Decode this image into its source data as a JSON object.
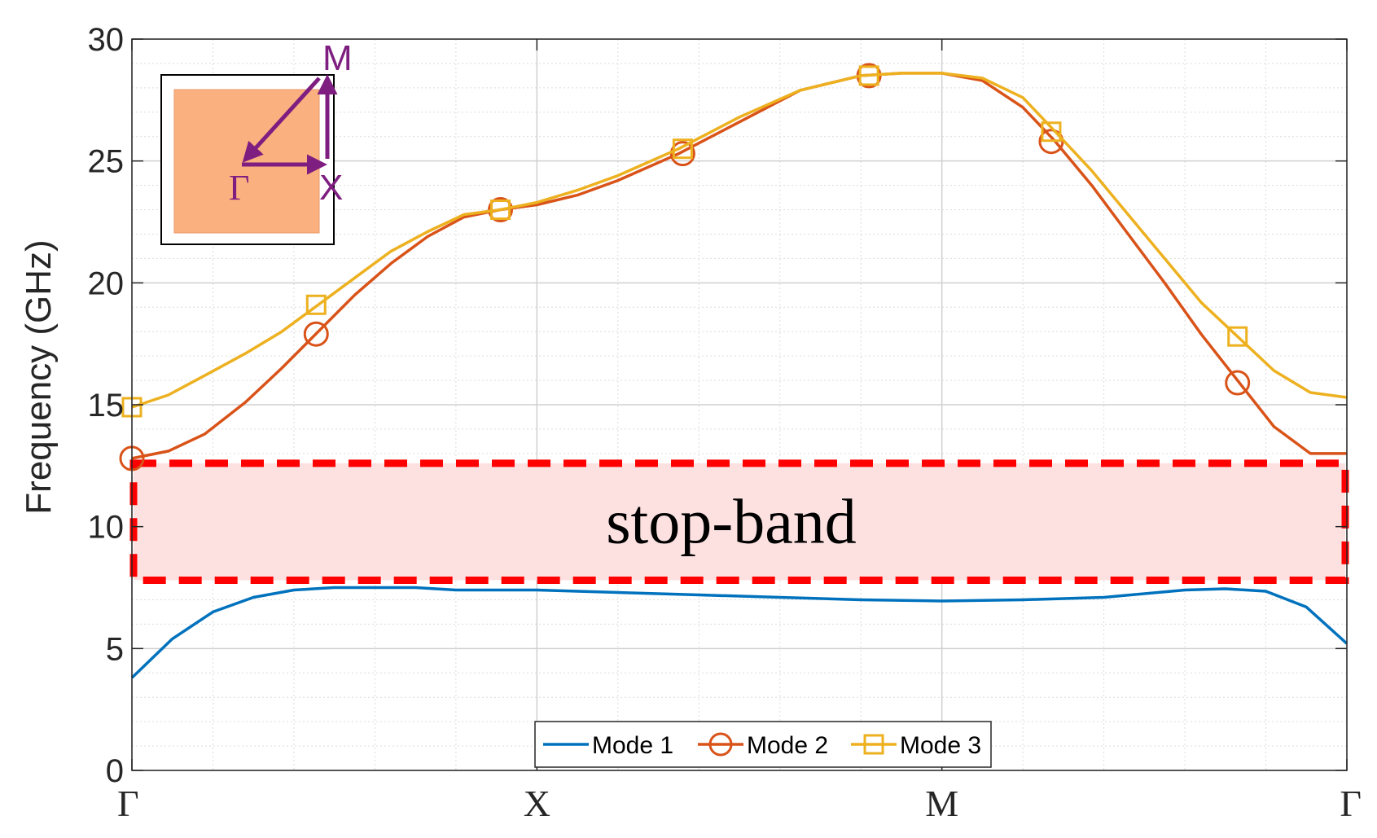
{
  "chart_data": {
    "type": "line",
    "title": "",
    "xlabel": "",
    "ylabel": "Frequency (GHz)",
    "ylim": [
      0,
      30
    ],
    "yticks": [
      0,
      5,
      10,
      15,
      20,
      25,
      30
    ],
    "xlim": [
      0,
      3
    ],
    "xticks": [
      {
        "pos": 0,
        "label": "Γ"
      },
      {
        "pos": 1,
        "label": "X"
      },
      {
        "pos": 2,
        "label": "M"
      },
      {
        "pos": 3,
        "label": "Γ"
      }
    ],
    "grid": true,
    "legend": "bottom-center",
    "series": [
      {
        "name": "Mode 1",
        "color": "#0072BD",
        "marker": "none",
        "x": [
          0,
          0.1,
          0.2,
          0.3,
          0.4,
          0.5,
          0.6,
          0.7,
          0.8,
          0.9,
          1.0,
          1.2,
          1.4,
          1.6,
          1.8,
          2.0,
          2.2,
          2.4,
          2.6,
          2.7,
          2.8,
          2.9,
          3.0
        ],
        "values": [
          3.8,
          5.4,
          6.5,
          7.1,
          7.4,
          7.5,
          7.5,
          7.5,
          7.4,
          7.4,
          7.4,
          7.3,
          7.2,
          7.1,
          7.0,
          6.95,
          7.0,
          7.1,
          7.4,
          7.45,
          7.35,
          6.7,
          5.2
        ]
      },
      {
        "name": "Mode 2",
        "color": "#D95319",
        "marker": "circle",
        "x": [
          0,
          0.09,
          0.18,
          0.28,
          0.37,
          0.46,
          0.55,
          0.64,
          0.73,
          0.82,
          0.91,
          1.0,
          1.1,
          1.2,
          1.35,
          1.5,
          1.65,
          1.8,
          1.9,
          2.0,
          2.1,
          2.2,
          2.28,
          2.37,
          2.46,
          2.55,
          2.64,
          2.73,
          2.82,
          2.91,
          3.0
        ],
        "values": [
          12.8,
          13.1,
          13.8,
          15.1,
          16.5,
          18.0,
          19.5,
          20.8,
          21.9,
          22.7,
          23.0,
          23.2,
          23.6,
          24.2,
          25.3,
          26.6,
          27.9,
          28.5,
          28.6,
          28.6,
          28.3,
          27.2,
          25.8,
          24.0,
          22.0,
          20.0,
          17.9,
          16.0,
          14.1,
          13.0,
          13.0
        ],
        "marker_x": [
          0,
          0.455,
          0.91,
          1.36,
          1.82,
          2.27,
          2.73
        ],
        "marker_values": [
          12.8,
          17.9,
          23.0,
          25.3,
          28.5,
          25.8,
          15.9
        ]
      },
      {
        "name": "Mode 3",
        "color": "#EDB120",
        "marker": "square",
        "x": [
          0,
          0.09,
          0.18,
          0.28,
          0.37,
          0.46,
          0.55,
          0.64,
          0.73,
          0.82,
          0.91,
          1.0,
          1.1,
          1.2,
          1.35,
          1.5,
          1.65,
          1.8,
          1.9,
          2.0,
          2.1,
          2.2,
          2.28,
          2.37,
          2.46,
          2.55,
          2.64,
          2.73,
          2.82,
          2.91,
          3.0
        ],
        "values": [
          14.9,
          15.4,
          16.2,
          17.1,
          18.0,
          19.1,
          20.2,
          21.3,
          22.1,
          22.8,
          23.0,
          23.3,
          23.8,
          24.4,
          25.5,
          26.8,
          27.9,
          28.5,
          28.6,
          28.6,
          28.4,
          27.6,
          26.2,
          24.6,
          22.8,
          21.0,
          19.2,
          17.8,
          16.4,
          15.5,
          15.3
        ],
        "marker_x": [
          0,
          0.455,
          0.91,
          1.36,
          1.82,
          2.27,
          2.73
        ],
        "marker_values": [
          14.9,
          19.1,
          23.0,
          25.5,
          28.5,
          26.2,
          17.8
        ]
      }
    ],
    "annotations": {
      "stop_band": {
        "label": "stop-band",
        "ymin": 7.8,
        "ymax": 12.6,
        "fill": "#fde1e1",
        "stroke": "#ff0000"
      },
      "inset": {
        "labels": {
          "gamma": "Γ",
          "x": "X",
          "m": "M"
        },
        "fill": "#fbb07f",
        "arrow_color": "#7e1e80"
      }
    }
  }
}
